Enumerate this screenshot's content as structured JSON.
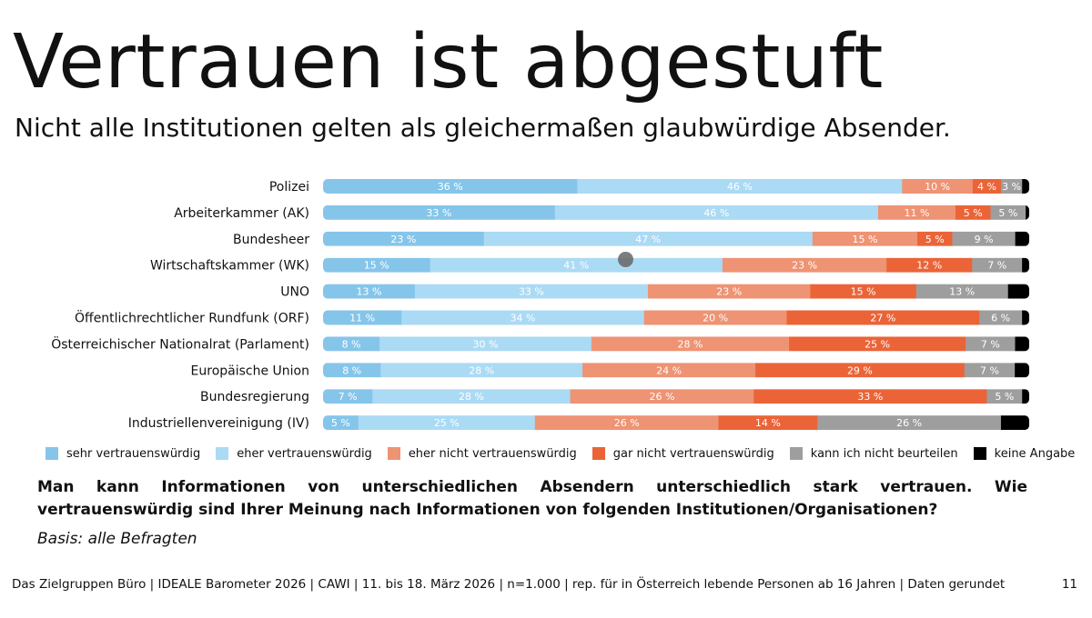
{
  "header": {
    "title": "Vertrauen ist abgestuft",
    "subtitle": "Nicht alle Institutionen gelten als gleichermaßen glaubwürdige Absender."
  },
  "chart_data": {
    "type": "bar",
    "orientation": "horizontal",
    "stacked": true,
    "unit": "%",
    "categories": [
      "Polizei",
      "Arbeiterkammer (AK)",
      "Bundesheer",
      "Wirtschaftskammer (WK)",
      "UNO",
      "Öffentlichrechtlicher Rundfunk (ORF)",
      "Österreichischer Nationalrat (Parlament)",
      "Europäische Union",
      "Bundesregierung",
      "Industriellenvereinigung (IV)"
    ],
    "series": [
      {
        "name": "sehr vertrauenswürdig",
        "color": "#86c5ea",
        "label_color": "#ffffff",
        "values": [
          36,
          33,
          23,
          15,
          13,
          11,
          8,
          8,
          7,
          5
        ]
      },
      {
        "name": "eher vertrauenswürdig",
        "color": "#abdaf4",
        "label_color": "#ffffff",
        "values": [
          46,
          46,
          47,
          41,
          33,
          34,
          30,
          28,
          28,
          25
        ]
      },
      {
        "name": "eher nicht vertrauenswürdig",
        "color": "#ee9373",
        "label_color": "#ffffff",
        "values": [
          10,
          11,
          15,
          23,
          23,
          20,
          28,
          24,
          26,
          26
        ]
      },
      {
        "name": "gar nicht vertrauenswürdig",
        "color": "#ea6438",
        "label_color": "#ffffff",
        "values": [
          4,
          5,
          5,
          12,
          15,
          27,
          25,
          29,
          33,
          14
        ]
      },
      {
        "name": "kann ich nicht beurteilen",
        "color": "#9e9e9e",
        "label_color": "#ffffff",
        "values": [
          3,
          5,
          9,
          7,
          13,
          6,
          7,
          7,
          5,
          26
        ]
      },
      {
        "name": "keine Angabe",
        "color": "#000000",
        "label_color": "#ffffff",
        "values": [
          1,
          0.5,
          2,
          1,
          3,
          1,
          2,
          2,
          1,
          4
        ]
      }
    ],
    "data_labels": [
      [
        "36 %",
        "46 %",
        "10 %",
        "4 %",
        "3 %",
        ""
      ],
      [
        "33 %",
        "46 %",
        "11 %",
        "5 %",
        "5 %",
        ""
      ],
      [
        "23 %",
        "47 %",
        "15 %",
        "5 %",
        "9 %",
        ""
      ],
      [
        "15 %",
        "41 %",
        "23 %",
        "12 %",
        "7 %",
        ""
      ],
      [
        "13 %",
        "33 %",
        "23 %",
        "15 %",
        "13 %",
        ""
      ],
      [
        "11 %",
        "34 %",
        "20 %",
        "27 %",
        "6 %",
        ""
      ],
      [
        "8 %",
        "30 %",
        "28 %",
        "25 %",
        "7 %",
        ""
      ],
      [
        "8 %",
        "28 %",
        "24 %",
        "29 %",
        "7 %",
        ""
      ],
      [
        "7 %",
        "28 %",
        "26 %",
        "33 %",
        "5 %",
        ""
      ],
      [
        "5 %",
        "25 %",
        "26 %",
        "14 %",
        "26 %",
        ""
      ]
    ],
    "legend_position": "bottom"
  },
  "question": "Man kann Informationen von unterschiedlichen Absendern unterschiedlich stark vertrauen. Wie vertrauenswürdig sind Ihrer Meinung nach Informationen von folgenden Institutionen/Organisationen?",
  "basis": "Basis: alle Befragten",
  "footer": "Das Zielgruppen Büro | IDEALE Barometer 2026 | CAWI | 11. bis 18. März 2026 | n=1.000 | rep. für in Österreich lebende Personen ab 16 Jahren | Daten gerundet",
  "page_number": "11"
}
